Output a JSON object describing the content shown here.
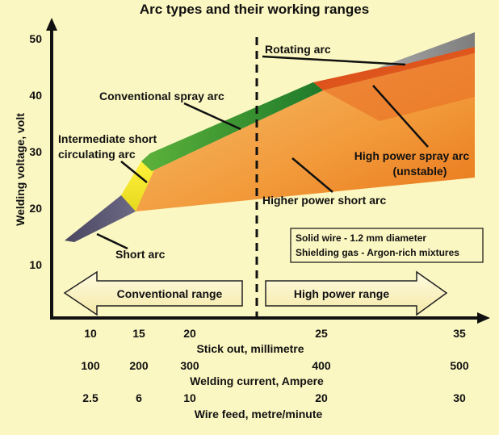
{
  "title": "Arc types and their working ranges",
  "axis": {
    "y_label": "Welding voltage, volt",
    "y_ticks": [
      "50",
      "40",
      "30",
      "20",
      "10"
    ]
  },
  "x_scales": {
    "stickout": {
      "label": "Stick out, millimetre",
      "ticks": [
        "10",
        "15",
        "20",
        "25",
        "35"
      ]
    },
    "current": {
      "label": "Welding current, Ampere",
      "ticks": [
        "100",
        "200",
        "300",
        "400",
        "500"
      ]
    },
    "wirefeed": {
      "label": "Wire feed, metre/minute",
      "ticks": [
        "2.5",
        "6",
        "10",
        "20",
        "30"
      ]
    }
  },
  "regions": {
    "short_arc": {
      "label": "Short arc",
      "color": "#5a5672"
    },
    "intermediate": {
      "label_line1": "Intermediate short",
      "label_line2": "circulating arc",
      "color": "#f7ef2a"
    },
    "conventional_spray": {
      "label": "Conventional spray arc",
      "color": "#3e9a2e"
    },
    "rotating": {
      "label": "Rotating arc",
      "color": "#8f8f8f"
    },
    "high_power_spray": {
      "label_line1": "High power spray arc",
      "label_line2": "(unstable)",
      "color": "#e3541c"
    },
    "higher_power_short": {
      "label": "Higher power short arc",
      "color": "#f0a040"
    }
  },
  "info_box": {
    "line1": "Solid wire - 1.2 mm diameter",
    "line2": "Shielding gas - Argon-rich mixtures"
  },
  "ranges": {
    "conventional": "Conventional range",
    "high_power": "High power range"
  }
}
